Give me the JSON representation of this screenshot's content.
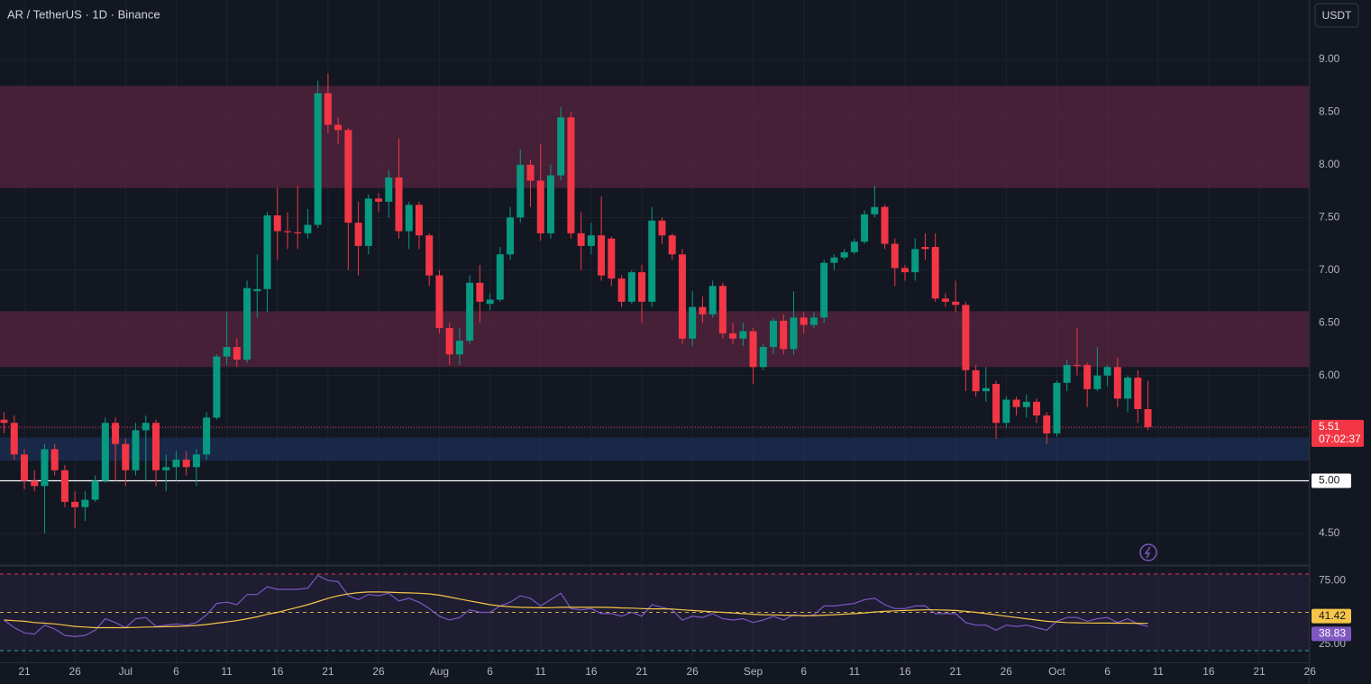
{
  "chart_data": {
    "type": "candlestick",
    "title": "AR / TetherUS · 1D · Binance",
    "currency": "USDT",
    "categories": [
      null,
      null,
      "21",
      null,
      null,
      null,
      null,
      "26",
      null,
      null,
      null,
      null,
      "Jul",
      null,
      null,
      null,
      null,
      "6",
      null,
      null,
      null,
      null,
      "11",
      null,
      null,
      null,
      null,
      "16",
      null,
      null,
      null,
      null,
      "21",
      null,
      null,
      null,
      null,
      "26",
      null,
      null,
      null,
      null,
      null,
      "Aug",
      null,
      null,
      null,
      null,
      "6",
      null,
      null,
      null,
      null,
      "11",
      null,
      null,
      null,
      null,
      "16",
      null,
      null,
      null,
      null,
      "21",
      null,
      null,
      null,
      null,
      "26",
      null,
      null,
      null,
      null,
      null,
      "Sep",
      null,
      null,
      null,
      null,
      "6",
      null,
      null,
      null,
      null,
      "11",
      null,
      null,
      null,
      null,
      "16",
      null,
      null,
      null,
      null,
      "21",
      null,
      null,
      null,
      null,
      "26",
      null,
      null,
      null,
      null,
      "Oct",
      null,
      null,
      null,
      null,
      "6",
      null,
      null,
      null,
      null,
      "11",
      null,
      null,
      null,
      null,
      "16",
      null,
      null,
      null,
      null,
      "21",
      null,
      null,
      null,
      null,
      "26"
    ],
    "open": [
      5.58,
      5.55,
      5.25,
      5.0,
      4.95,
      5.3,
      5.1,
      4.8,
      4.75,
      4.82,
      5.0,
      5.55,
      5.35,
      5.1,
      5.48,
      5.55,
      5.1,
      5.13,
      5.2,
      5.13,
      5.25,
      5.6,
      6.18,
      6.27,
      6.15,
      6.8,
      6.82,
      7.52,
      7.37,
      7.36,
      7.35,
      7.43,
      8.68,
      8.38,
      8.33,
      7.45,
      7.23,
      7.68,
      7.65,
      7.88,
      7.37,
      7.62,
      7.33,
      6.95,
      6.45,
      6.2,
      6.33,
      6.88,
      6.68,
      6.72,
      7.15,
      7.5,
      8.0,
      7.85,
      7.35,
      7.9,
      8.45,
      7.35,
      7.23,
      7.33,
      7.3,
      6.92,
      6.7,
      6.98,
      6.7,
      7.47,
      7.33,
      7.15,
      6.35,
      6.65,
      6.58,
      6.85,
      6.4,
      6.35,
      6.42,
      6.08,
      6.27,
      6.52,
      6.25,
      6.55,
      6.48,
      6.55,
      7.07,
      7.12,
      7.17,
      7.27,
      7.53,
      7.6,
      7.25,
      7.02,
      6.98,
      7.22,
      7.22,
      6.73,
      6.7,
      6.67,
      6.05,
      5.85,
      5.92,
      5.55,
      5.77,
      5.7,
      5.75,
      5.62,
      5.45,
      5.93,
      6.1,
      6.1,
      5.87,
      6.0,
      6.08,
      5.78,
      5.98,
      5.68,
      null,
      null,
      null,
      null,
      null,
      null,
      null,
      null,
      null,
      null,
      null,
      null,
      null,
      null,
      null,
      null
    ],
    "high": [
      5.65,
      5.62,
      5.3,
      5.1,
      5.35,
      5.35,
      5.15,
      4.9,
      4.9,
      5.05,
      5.6,
      5.6,
      5.4,
      5.55,
      5.62,
      5.58,
      5.25,
      5.28,
      5.28,
      5.3,
      5.65,
      6.2,
      6.6,
      6.35,
      6.9,
      7.15,
      7.55,
      7.78,
      7.55,
      7.8,
      7.58,
      8.8,
      8.87,
      8.45,
      8.35,
      7.65,
      7.72,
      7.73,
      7.95,
      8.25,
      7.65,
      7.65,
      7.35,
      7.0,
      6.5,
      6.45,
      6.95,
      7.05,
      6.78,
      7.22,
      7.6,
      8.15,
      8.05,
      8.2,
      8.0,
      8.55,
      8.5,
      7.55,
      7.45,
      7.7,
      7.32,
      6.95,
      7.0,
      7.05,
      7.6,
      7.5,
      7.35,
      7.2,
      6.8,
      6.75,
      6.9,
      6.88,
      6.5,
      6.5,
      6.45,
      6.3,
      6.55,
      6.58,
      6.8,
      6.6,
      6.6,
      7.1,
      7.15,
      7.2,
      7.3,
      7.57,
      7.8,
      7.62,
      7.3,
      7.05,
      7.3,
      7.35,
      7.35,
      6.78,
      6.9,
      6.7,
      6.1,
      6.08,
      5.95,
      5.8,
      5.8,
      5.82,
      5.78,
      5.65,
      5.95,
      6.15,
      6.45,
      6.12,
      6.27,
      6.1,
      6.17,
      6.0,
      6.05,
      5.95,
      null,
      null,
      null,
      null,
      null,
      null,
      null,
      null,
      null,
      null,
      null,
      null,
      null,
      null,
      null,
      null
    ],
    "low": [
      5.45,
      5.2,
      4.92,
      4.9,
      4.5,
      5.05,
      4.75,
      4.55,
      4.62,
      4.8,
      4.98,
      5.0,
      4.95,
      5.05,
      5.0,
      4.95,
      4.9,
      5.0,
      5.05,
      4.95,
      5.2,
      5.58,
      6.1,
      6.08,
      6.12,
      6.55,
      6.6,
      7.1,
      7.2,
      7.2,
      7.3,
      7.4,
      8.3,
      8.2,
      7.0,
      6.95,
      7.15,
      7.55,
      7.5,
      7.3,
      7.2,
      7.2,
      6.85,
      6.4,
      6.1,
      6.1,
      6.3,
      6.5,
      6.62,
      6.7,
      7.1,
      7.45,
      7.6,
      7.28,
      7.3,
      7.85,
      7.3,
      7.0,
      7.15,
      6.9,
      6.85,
      6.65,
      6.68,
      6.5,
      6.65,
      7.25,
      7.1,
      6.3,
      6.28,
      6.5,
      6.55,
      6.35,
      6.3,
      6.28,
      5.92,
      6.05,
      6.2,
      6.2,
      6.2,
      6.4,
      6.45,
      6.5,
      7.0,
      7.1,
      7.15,
      7.25,
      7.5,
      7.2,
      6.85,
      6.9,
      6.9,
      7.1,
      6.7,
      6.65,
      6.6,
      5.85,
      5.8,
      5.75,
      5.4,
      5.5,
      5.62,
      5.6,
      5.55,
      5.35,
      5.42,
      5.85,
      6.0,
      5.7,
      5.85,
      5.9,
      5.7,
      5.65,
      5.55,
      5.48,
      null,
      null,
      null,
      null,
      null,
      null,
      null,
      null,
      null,
      null,
      null,
      null,
      null,
      null,
      null,
      null
    ],
    "close": [
      5.55,
      5.25,
      5.0,
      4.95,
      5.3,
      5.1,
      4.8,
      4.75,
      4.82,
      5.0,
      5.55,
      5.35,
      5.1,
      5.48,
      5.55,
      5.1,
      5.13,
      5.2,
      5.13,
      5.25,
      5.6,
      6.18,
      6.27,
      6.15,
      6.83,
      6.82,
      7.52,
      7.37,
      7.36,
      7.35,
      7.43,
      8.68,
      8.38,
      8.33,
      7.45,
      7.23,
      7.68,
      7.65,
      7.88,
      7.37,
      7.62,
      7.33,
      6.95,
      6.45,
      6.2,
      6.33,
      6.88,
      6.7,
      6.72,
      7.15,
      7.5,
      8.0,
      7.85,
      7.35,
      7.9,
      8.45,
      7.35,
      7.23,
      7.33,
      6.95,
      6.92,
      6.7,
      6.98,
      6.7,
      7.47,
      7.33,
      7.15,
      6.35,
      6.65,
      6.58,
      6.85,
      6.4,
      6.35,
      6.42,
      6.08,
      6.27,
      6.52,
      6.25,
      6.55,
      6.48,
      6.55,
      7.07,
      7.12,
      7.17,
      7.27,
      7.53,
      7.6,
      7.25,
      7.02,
      6.98,
      7.2,
      7.2,
      6.73,
      6.7,
      6.67,
      6.05,
      5.85,
      5.88,
      5.55,
      5.77,
      5.7,
      5.75,
      5.62,
      5.45,
      5.93,
      6.1,
      6.1,
      5.87,
      6.0,
      6.08,
      5.78,
      5.98,
      5.68,
      5.51,
      null,
      null,
      null,
      null,
      null,
      null,
      null,
      null,
      null,
      null,
      null,
      null,
      null,
      null,
      null,
      null
    ],
    "up_color": "#089981",
    "down_color": "#f23645",
    "ylim": [
      4.2,
      9.565
    ],
    "yticks": [
      {
        "value": 4.5,
        "label": "4.50"
      },
      {
        "value": 5.0,
        "label": "5.00"
      },
      {
        "value": 5.5,
        "label": "5.50"
      },
      {
        "value": 6.0,
        "label": "6.00"
      },
      {
        "value": 6.5,
        "label": "6.50"
      },
      {
        "value": 7.0,
        "label": "7.00"
      },
      {
        "value": 7.5,
        "label": "7.50"
      },
      {
        "value": 8.0,
        "label": "8.00"
      },
      {
        "value": 8.5,
        "label": "8.50"
      },
      {
        "value": 9.0,
        "label": "9.00"
      }
    ],
    "grid": true,
    "zones": [
      {
        "from": 7.78,
        "to": 8.75,
        "color": "#5d2540"
      },
      {
        "from": 6.08,
        "to": 6.61,
        "color": "#5d2540"
      },
      {
        "from": 5.19,
        "to": 5.41,
        "color": "#1e3158"
      }
    ],
    "level": {
      "value": 5,
      "label": "5.00",
      "color": "#ffffff"
    },
    "last_price": 5.51,
    "countdown": "07:02:37",
    "rsi": {
      "ylim": [
        10.8,
        87.1
      ],
      "yticks": [
        {
          "value": 25,
          "label": "25.00"
        },
        {
          "value": 75,
          "label": "75.00"
        }
      ],
      "bands": [
        {
          "value": 80,
          "color": "#f23645"
        },
        {
          "value": 50,
          "color": "#c9b037"
        },
        {
          "value": 20,
          "color": "#22ab94"
        }
      ],
      "series": [
        {
          "color": "#7e57c2",
          "values": [
            44,
            38,
            34,
            33,
            40,
            37,
            32,
            31,
            32,
            36,
            45,
            42,
            38,
            45,
            46,
            39,
            40,
            41,
            40,
            42,
            48,
            57,
            58,
            56,
            64,
            64,
            70,
            68,
            68,
            68,
            69,
            79,
            75,
            74,
            63,
            60,
            64,
            63,
            65,
            59,
            61,
            58,
            53,
            47,
            44,
            46,
            52,
            50,
            50,
            55,
            58,
            63,
            61,
            55,
            60,
            65,
            53,
            52,
            53,
            49,
            49,
            47,
            50,
            47,
            56,
            54,
            52,
            44,
            47,
            46,
            49,
            45,
            44,
            45,
            42,
            44,
            47,
            44,
            48,
            47,
            48,
            55,
            55,
            56,
            57,
            60,
            61,
            56,
            53,
            53,
            55,
            55,
            49,
            49,
            49,
            42,
            40,
            40,
            36,
            40,
            39,
            40,
            38,
            36,
            43,
            46,
            46,
            43,
            45,
            46,
            42,
            45,
            41,
            38.83,
            null,
            null,
            null,
            null,
            null,
            null,
            null,
            null,
            null,
            null,
            null,
            null,
            null,
            null,
            null,
            null
          ]
        },
        {
          "color": "#f7c548",
          "values": [
            44,
            43.5,
            43,
            42,
            41.5,
            41,
            40,
            39,
            38.5,
            38,
            38,
            38,
            38,
            38.2,
            38.5,
            38.6,
            38.8,
            39,
            39.3,
            39.8,
            40.5,
            41.5,
            42.5,
            43.5,
            45,
            46.5,
            48.5,
            50,
            52,
            54,
            56,
            58.5,
            61,
            63,
            64.5,
            65.5,
            66,
            66,
            65.8,
            65.5,
            65.3,
            65,
            64.5,
            63.5,
            62,
            60.5,
            59,
            57.5,
            56,
            55,
            54.3,
            54,
            53.8,
            53.6,
            53.7,
            54,
            54,
            54,
            54,
            54,
            53.8,
            53.5,
            53.3,
            53,
            52.8,
            52.8,
            52.6,
            52,
            51.5,
            51,
            50.5,
            50,
            49.5,
            49,
            48.5,
            48.2,
            48,
            47.8,
            47.6,
            47.5,
            47.5,
            47.8,
            48.2,
            48.6,
            49,
            49.6,
            50.3,
            50.8,
            51.2,
            51.5,
            51.8,
            52,
            52,
            51.8,
            51.5,
            50.8,
            50,
            49,
            48,
            47,
            46,
            45,
            44,
            43,
            42.5,
            42,
            41.8,
            41.7,
            41.6,
            41.6,
            41.5,
            41.5,
            41.45,
            41.42,
            null,
            null,
            null,
            null,
            null,
            null,
            null,
            null,
            null,
            null,
            null,
            null,
            null,
            null,
            null,
            null
          ]
        }
      ]
    }
  }
}
